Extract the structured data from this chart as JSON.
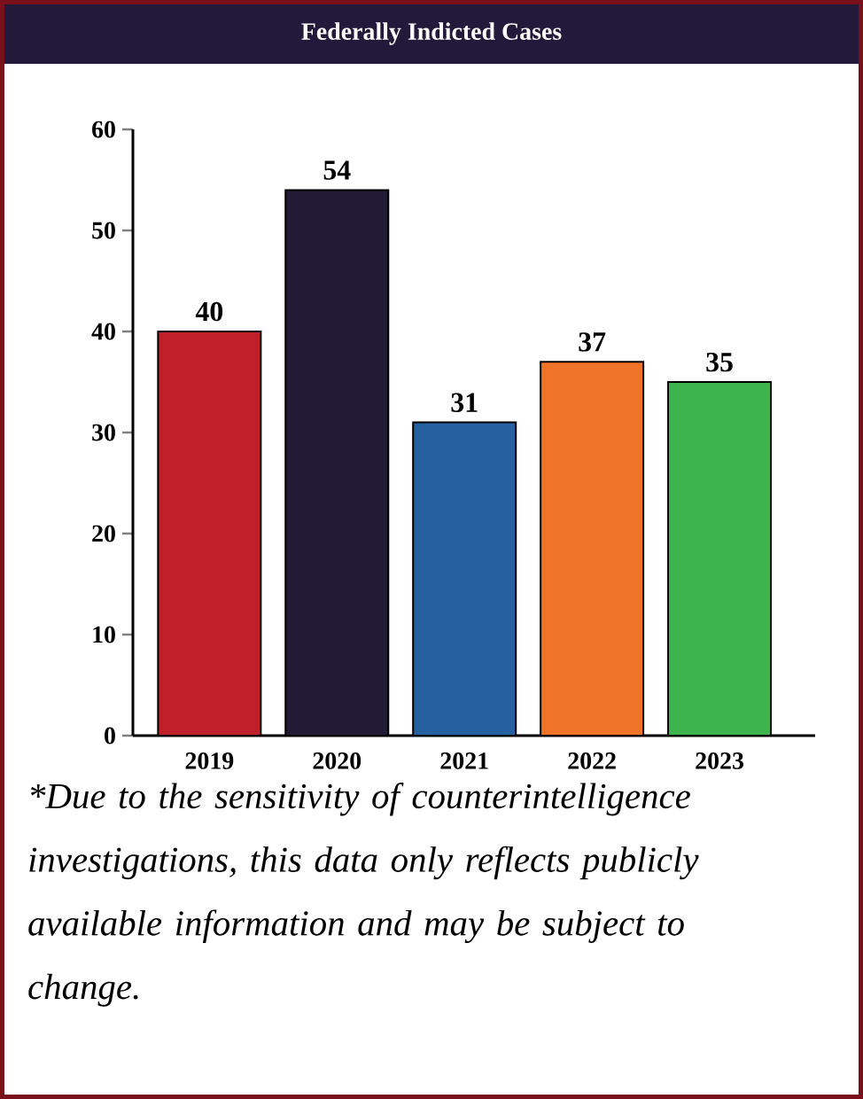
{
  "chart_data": {
    "type": "bar",
    "title": "Federally Indicted Cases",
    "categories": [
      "2019",
      "2020",
      "2021",
      "2022",
      "2023"
    ],
    "values": [
      40,
      54,
      31,
      37,
      35
    ],
    "colors": [
      "#c0202a",
      "#221b35",
      "#2560a0",
      "#f07428",
      "#3cb44b"
    ],
    "ylim": [
      0,
      60
    ],
    "yticks": [
      0,
      10,
      20,
      30,
      40,
      50,
      60
    ],
    "data_labels": true,
    "grid": false,
    "annotations": [
      "*Due to the sensitivity of counterintelligence investigations, this data only reflects publicly available information and may be subject to change."
    ]
  }
}
